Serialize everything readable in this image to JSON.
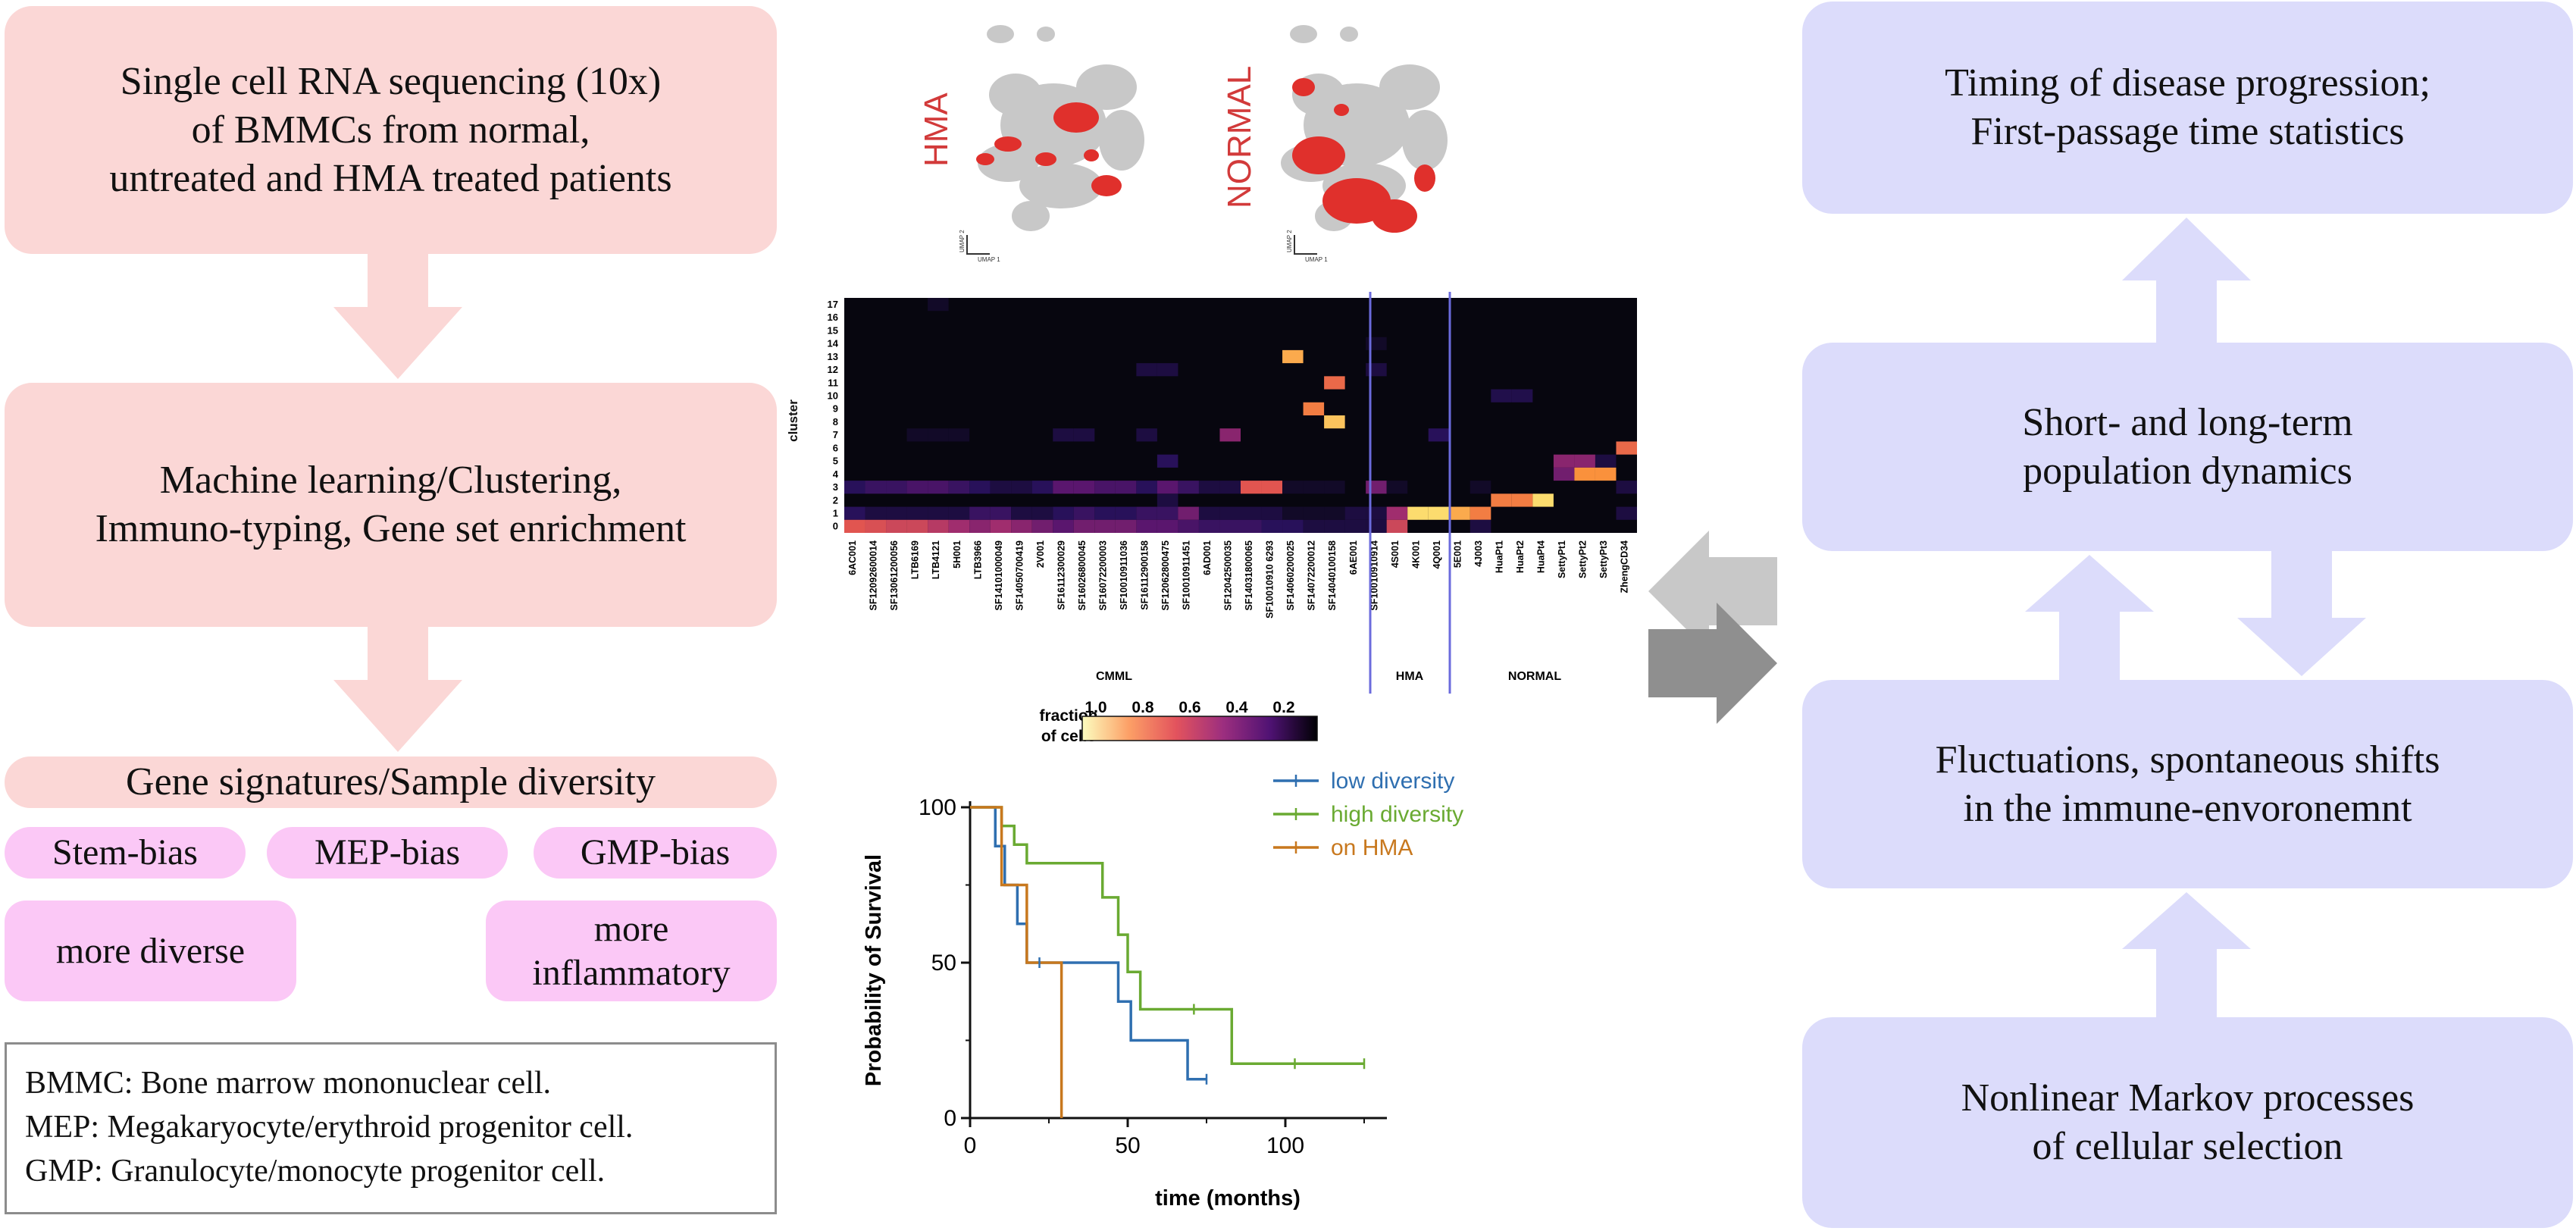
{
  "left_flow": {
    "box1": [
      "Single cell RNA sequencing (10x)",
      "of BMMCs from normal,",
      "untreated and HMA treated patients"
    ],
    "box2": [
      "Machine learning/Clustering,",
      "Immuno-typing, Gene set enrichment"
    ],
    "box3": "Gene signatures/Sample diversity",
    "biases": [
      "Stem-bias",
      "MEP-bias",
      "GMP-bias"
    ],
    "outcomes": {
      "left": "more diverse",
      "right": [
        "more",
        "inflammatory"
      ]
    },
    "definitions": [
      "BMMC: Bone marrow mononuclear cell.",
      "MEP: Megakaryocyte/erythroid progenitor cell.",
      "GMP: Granulocyte/monocyte progenitor cell."
    ]
  },
  "right_flow": {
    "box_top": [
      "Timing of disease progression;",
      "First-passage time statistics"
    ],
    "box_2": [
      "Short- and long-term",
      "population dynamics"
    ],
    "box_3": [
      "Fluctuations, spontaneous shifts",
      "in the immune-envoronemnt"
    ],
    "box_bottom": [
      "Nonlinear Markov processes",
      "of cellular selection"
    ]
  },
  "umap": {
    "labels": [
      "HMA",
      "NORMAL"
    ],
    "axis_x": "UMAP 1",
    "axis_y": "UMAP 2"
  },
  "heatmap": {
    "ylabel": "cluster",
    "clusters": [
      "17",
      "16",
      "15",
      "14",
      "13",
      "12",
      "11",
      "10",
      "9",
      "8",
      "7",
      "6",
      "5",
      "4",
      "3",
      "2",
      "1",
      "0"
    ],
    "samples": [
      "6AC001",
      "SF12092600014",
      "SF13061200056",
      "LTB6169",
      "LTB4121",
      "5H001",
      "LTB3966",
      "SF14101000049",
      "SF14050700419",
      "2V001",
      "SF16112300029",
      "SF16026800045",
      "SF16072200003",
      "SF10010911036",
      "SF16112900158",
      "SF12062800475",
      "SF10010911451",
      "6AD001",
      "SF12042500035",
      "SF14031800065",
      "SF10010910 6293",
      "SF14060200025",
      "SF14072200012",
      "SF14040100158",
      "6AE001",
      "SF10010910914",
      "4S001",
      "4K001",
      "4Q001",
      "5E001",
      "4J003",
      "HuaPt1",
      "HuaPt2",
      "HuaPt4",
      "SettyPt1",
      "SettyPt2",
      "SettyPt3",
      "ZhengCD34"
    ],
    "groups": [
      "CMML",
      "HMA",
      "NORMAL"
    ],
    "colorbar_label": [
      "fraction",
      "of cells"
    ],
    "colorbar_ticks": [
      "1.0",
      "0.8",
      "0.6",
      "0.4",
      "0.2"
    ]
  },
  "chart_data": {
    "type": "line",
    "title": "",
    "xlabel": "time (months)",
    "ylabel": "Probability of Survival",
    "xlim": [
      0,
      125
    ],
    "ylim": [
      0,
      100
    ],
    "xticks": [
      "0",
      "50",
      "100"
    ],
    "yticks": [
      "0",
      "50",
      "100"
    ],
    "series": [
      {
        "name": "low diversity",
        "color": "#2f6fb0",
        "x": [
          0,
          8,
          8,
          11,
          11,
          15,
          15,
          18,
          18,
          47,
          47,
          51,
          51,
          69,
          69,
          75
        ],
        "y": [
          100,
          100,
          87.5,
          87.5,
          75,
          75,
          62.5,
          62.5,
          50,
          50,
          37.5,
          37.5,
          25,
          25,
          12.5,
          12.5
        ]
      },
      {
        "name": "high diversity",
        "color": "#6aaa32",
        "x": [
          0,
          10,
          10,
          14,
          14,
          18,
          18,
          42,
          42,
          47,
          47,
          50,
          50,
          54,
          54,
          83,
          83,
          125
        ],
        "y": [
          100,
          100,
          94,
          94,
          88,
          88,
          82,
          82,
          71,
          71,
          59,
          59,
          47,
          47,
          35,
          35,
          17.5,
          17.5
        ]
      },
      {
        "name": "on HMA",
        "color": "#c8781e",
        "x": [
          0,
          10,
          10,
          18,
          18,
          29,
          29
        ],
        "y": [
          100,
          100,
          75,
          75,
          50,
          50,
          0
        ]
      }
    ]
  }
}
